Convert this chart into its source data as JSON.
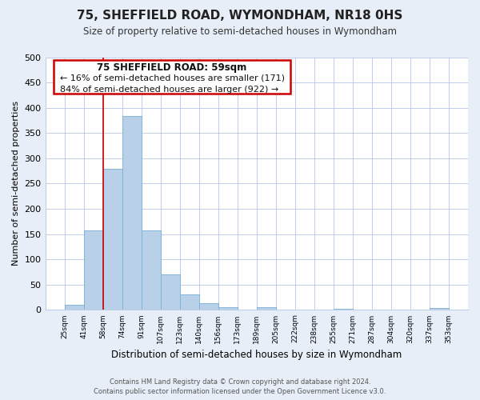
{
  "title": "75, SHEFFIELD ROAD, WYMONDHAM, NR18 0HS",
  "subtitle": "Size of property relative to semi-detached houses in Wymondham",
  "xlabel": "Distribution of semi-detached houses by size in Wymondham",
  "ylabel": "Number of semi-detached properties",
  "bin_labels": [
    "25sqm",
    "41sqm",
    "58sqm",
    "74sqm",
    "91sqm",
    "107sqm",
    "123sqm",
    "140sqm",
    "156sqm",
    "173sqm",
    "189sqm",
    "205sqm",
    "222sqm",
    "238sqm",
    "255sqm",
    "271sqm",
    "287sqm",
    "304sqm",
    "320sqm",
    "337sqm",
    "353sqm"
  ],
  "bar_heights": [
    10,
    157,
    280,
    383,
    157,
    70,
    30,
    13,
    5,
    0,
    6,
    0,
    0,
    0,
    3,
    0,
    0,
    0,
    0,
    4
  ],
  "bar_color": "#b8d0e8",
  "bar_edge_color": "#7aaed4",
  "vline_x": 2,
  "vline_color": "#cc0000",
  "ann_title": "75 SHEFFIELD ROAD: 59sqm",
  "ann_line2": "← 16% of semi-detached houses are smaller (171)",
  "ann_line3": "84% of semi-detached houses are larger (922) →",
  "ylim": [
    0,
    500
  ],
  "yticks": [
    0,
    50,
    100,
    150,
    200,
    250,
    300,
    350,
    400,
    450,
    500
  ],
  "footer_line1": "Contains HM Land Registry data © Crown copyright and database right 2024.",
  "footer_line2": "Contains public sector information licensed under the Open Government Licence v3.0.",
  "bg_color": "#e8eef8",
  "plot_bg_color": "#ffffff",
  "grid_color": "#c0cfe8"
}
